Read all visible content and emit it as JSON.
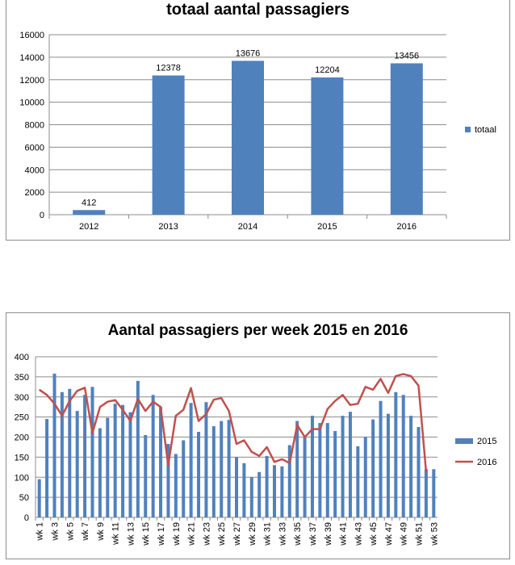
{
  "chart_data": [
    {
      "type": "bar",
      "title": "totaal aantal passagiers",
      "categories": [
        "2012",
        "2013",
        "2014",
        "2015",
        "2016"
      ],
      "series": [
        {
          "name": "totaal",
          "values": [
            412,
            12378,
            13676,
            12204,
            13456
          ],
          "color": "#4f81bd"
        }
      ],
      "data_labels": [
        "412",
        "12378",
        "13676",
        "12204",
        "13456"
      ],
      "ylim": [
        0,
        16000
      ],
      "yticks": [
        0,
        2000,
        4000,
        6000,
        8000,
        10000,
        12000,
        14000,
        16000
      ],
      "grid": true,
      "legend": "right"
    },
    {
      "type": "bar",
      "title": "Aantal passagiers per week 2015 en 2016",
      "categories": [
        "wk 1",
        "wk 2",
        "wk 3",
        "wk 4",
        "wk 5",
        "wk 6",
        "wk 7",
        "wk 8",
        "wk 9",
        "wk 10",
        "wk 11",
        "wk 12",
        "wk 13",
        "wk 14",
        "wk 15",
        "wk 16",
        "wk 17",
        "wk 18",
        "wk 19",
        "wk 20",
        "wk 21",
        "wk 22",
        "wk 23",
        "wk 24",
        "wk 25",
        "wk 26",
        "wk 27",
        "wk 28",
        "wk 29",
        "wk 30",
        "wk 31",
        "wk 32",
        "wk 33",
        "wk 34",
        "wk 35",
        "wk 36",
        "wk 37",
        "wk 38",
        "wk 39",
        "wk 40",
        "wk 41",
        "wk 42",
        "wk 43",
        "wk 44",
        "wk 45",
        "wk 46",
        "wk 47",
        "wk 48",
        "wk 49",
        "wk 50",
        "wk 51",
        "wk 52",
        "wk 53"
      ],
      "tick_labels": [
        "wk 1",
        "wk 3",
        "wk 5",
        "wk 7",
        "wk 9",
        "wk 11",
        "wk 13",
        "wk 15",
        "wk 17",
        "wk 19",
        "wk 21",
        "wk 23",
        "wk 25",
        "wk 27",
        "wk 29",
        "wk 31",
        "wk 33",
        "wk 35",
        "wk 37",
        "wk 39",
        "wk 41",
        "wk 43",
        "wk 45",
        "wk 47",
        "wk 49",
        "wk 51",
        "wk 53"
      ],
      "series": [
        {
          "name": "2015",
          "kind": "bar",
          "color": "#4f81bd",
          "values": [
            95,
            245,
            358,
            312,
            320,
            265,
            305,
            325,
            222,
            248,
            283,
            280,
            262,
            340,
            205,
            305,
            275,
            183,
            158,
            192,
            285,
            213,
            287,
            227,
            240,
            243,
            150,
            135,
            100,
            113,
            153,
            130,
            127,
            180,
            240,
            200,
            253,
            235,
            235,
            215,
            253,
            263,
            177,
            200,
            244,
            290,
            258,
            312,
            305,
            253,
            225,
            120,
            120
          ]
        },
        {
          "name": "2016",
          "kind": "line",
          "color": "#c0504d",
          "values": [
            318,
            305,
            283,
            253,
            290,
            315,
            323,
            210,
            275,
            288,
            292,
            268,
            240,
            295,
            265,
            288,
            275,
            130,
            253,
            268,
            322,
            240,
            257,
            293,
            297,
            265,
            183,
            192,
            163,
            153,
            175,
            138,
            145,
            135,
            230,
            200,
            220,
            220,
            270,
            290,
            305,
            280,
            283,
            325,
            318,
            345,
            310,
            352,
            357,
            352,
            328,
            113,
            null
          ]
        }
      ],
      "ylim": [
        0,
        400
      ],
      "yticks": [
        0,
        50,
        100,
        150,
        200,
        250,
        300,
        350,
        400
      ],
      "grid": true,
      "legend": "right"
    }
  ]
}
